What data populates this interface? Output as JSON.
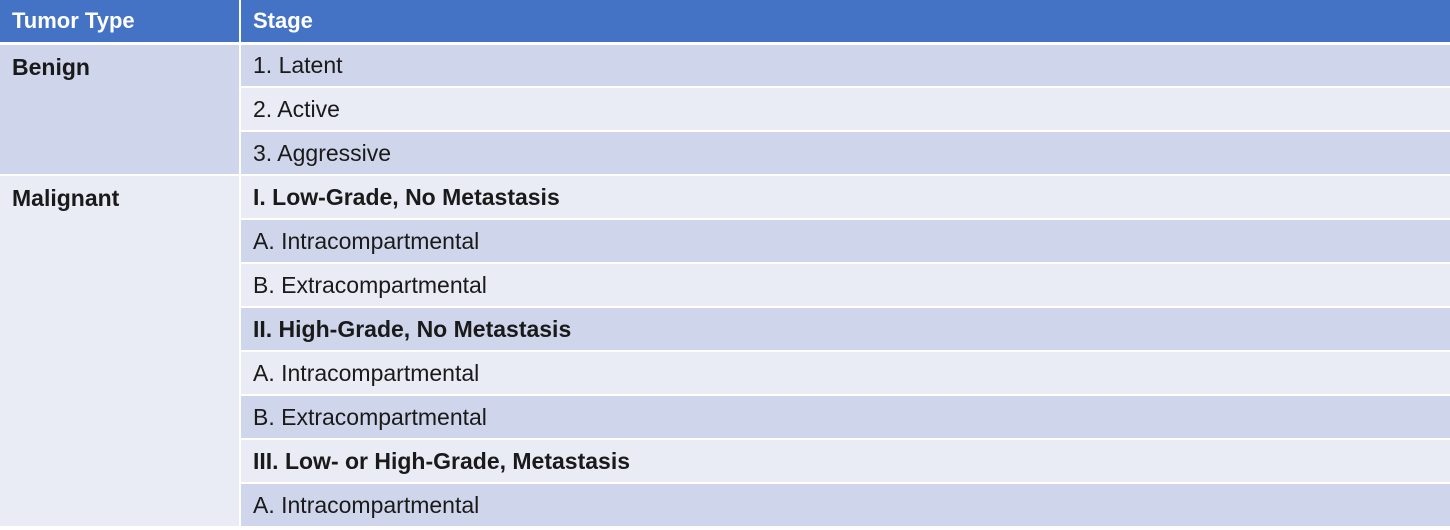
{
  "table": {
    "headers": {
      "type": "Tumor Type",
      "stage": "Stage"
    },
    "benign": {
      "label": "Benign",
      "stages": [
        "1. Latent",
        "2. Active",
        "3. Aggressive"
      ]
    },
    "malignant": {
      "label": "Malignant",
      "stages": [
        "I. Low-Grade, No Metastasis",
        "A. Intracompartmental",
        "B. Extracompartmental",
        "II. High-Grade, No Metastasis",
        "A. Intracompartmental",
        "B. Extracompartmental",
        "III. Low- or High-Grade, Metastasis",
        "A. Intracompartmental"
      ]
    }
  },
  "colors": {
    "header_bg": "#4472c4",
    "row_dark": "#cfd5ea",
    "row_light": "#e9ebf5"
  }
}
